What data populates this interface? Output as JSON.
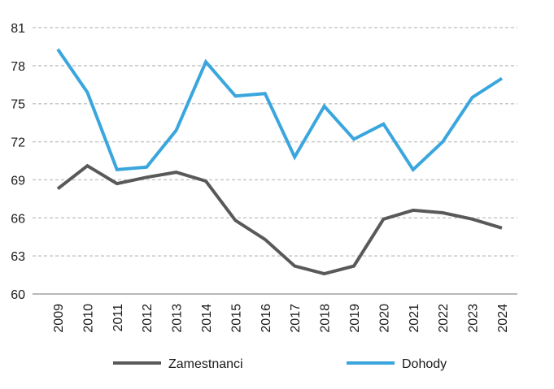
{
  "chart_data": {
    "type": "line",
    "title": "",
    "xlabel": "",
    "ylabel": "",
    "categories": [
      "2009",
      "2010",
      "2011",
      "2012",
      "2013",
      "2014",
      "2015",
      "2016",
      "2017",
      "2018",
      "2019",
      "2020",
      "2021",
      "2022",
      "2023",
      "2024"
    ],
    "ylim": [
      60,
      81
    ],
    "yticks": [
      60,
      63,
      66,
      69,
      72,
      75,
      78,
      81
    ],
    "grid": "horizontal-dashed",
    "legend_position": "bottom",
    "series": [
      {
        "name": "Zamestnanci",
        "color": "#595959",
        "values": [
          68.3,
          70.1,
          68.7,
          69.2,
          69.6,
          68.9,
          65.8,
          64.3,
          62.2,
          61.6,
          62.2,
          65.9,
          66.6,
          66.4,
          65.9,
          65.2
        ]
      },
      {
        "name": "Dohody",
        "color": "#3aa6dd",
        "values": [
          79.3,
          75.9,
          69.8,
          70.0,
          72.9,
          78.3,
          75.6,
          75.8,
          70.8,
          74.8,
          72.2,
          73.4,
          69.8,
          72.0,
          75.5,
          77.0
        ]
      }
    ]
  }
}
